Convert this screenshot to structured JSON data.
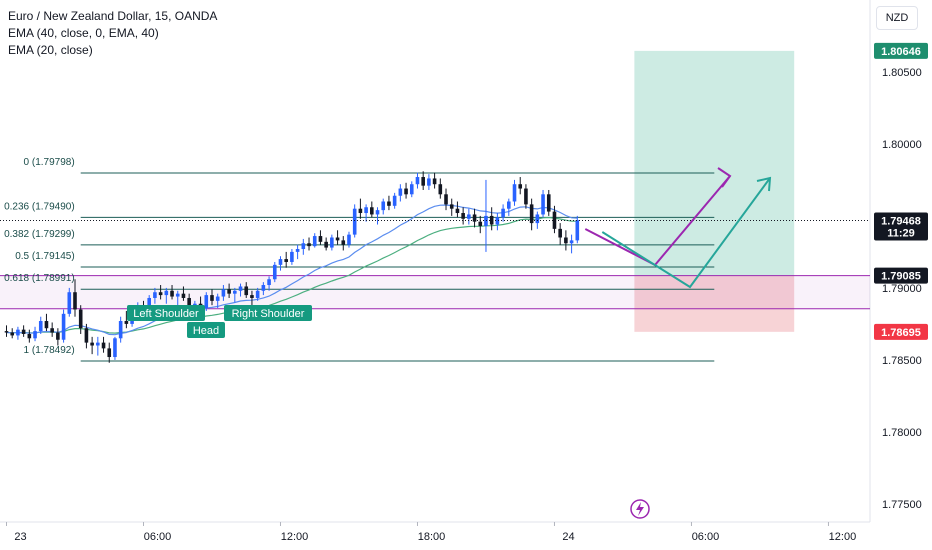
{
  "header": {
    "symbol_line": "Euro / New Zealand Dollar, 15, OANDA",
    "indicator_1": "EMA (40, close, 0, EMA, 40)",
    "indicator_2": "EMA (20, close)"
  },
  "currency_button": "NZD",
  "colors": {
    "up": "#2962ff",
    "down": "#131722",
    "ema40": "#5b8def",
    "ema20": "#4caf80",
    "fib": "#1b5e57",
    "purple": "#9c27b0",
    "teal": "#26a69a",
    "profit_zone": "#cdebe3",
    "loss_zone": "#f7d3d6",
    "target_label": "#1e8e6e",
    "stop_label": "#f23645",
    "price_label": "#131722"
  },
  "chart_data": {
    "type": "candlestick",
    "y_range": [
      1.772,
      1.809
    ],
    "y_ticks": [
      "1.80500",
      "1.80000",
      "1.79000",
      "1.78500",
      "1.78000",
      "1.77500"
    ],
    "y_tick_values": [
      1.805,
      1.8,
      1.79,
      1.785,
      1.78,
      1.775
    ],
    "x_ticks": [
      "23",
      "06:00",
      "12:00",
      "18:00",
      "24",
      "06:00",
      "12:00"
    ],
    "x_tick_bars": [
      0,
      24,
      48,
      72,
      96,
      120,
      144
    ],
    "price_labels": [
      {
        "text": "1.80646",
        "value": 1.80646,
        "kind": "target"
      },
      {
        "text": "1.79468",
        "value": 1.79468,
        "kind": "last"
      },
      {
        "text": "11:29",
        "value": 1.79385,
        "kind": "countdown"
      },
      {
        "text": "1.79085",
        "value": 1.79085,
        "kind": "level"
      },
      {
        "text": "1.78695",
        "value": 1.78695,
        "kind": "stop"
      }
    ],
    "fib_levels": [
      {
        "label": "0 (1.79798)",
        "value": 1.79798
      },
      {
        "label": "0.236 (1.79490)",
        "value": 1.7949
      },
      {
        "label": "0.382 (1.79299)",
        "value": 1.79299
      },
      {
        "label": "0.5 (1.79145)",
        "value": 1.79145
      },
      {
        "label": "0.618 (1.78991)",
        "value": 1.78991
      },
      {
        "label": "1 (1.78492)",
        "value": 1.78492
      }
    ],
    "fib_bar_range": [
      13,
      124
    ],
    "horizontal_levels": [
      1.79085,
      1.78855
    ],
    "position": {
      "bar_start": 110,
      "bar_end": 138,
      "target": 1.80646,
      "entry": 1.79085,
      "stop": 1.78695
    },
    "pattern_labels": [
      "Left Shoulder",
      "Head",
      "Right Shoulder"
    ],
    "candles": [
      [
        1.787,
        1.7874,
        1.7866,
        1.7869
      ],
      [
        1.7869,
        1.7872,
        1.7865,
        1.7867
      ],
      [
        1.7867,
        1.7873,
        1.7864,
        1.7871
      ],
      [
        1.7871,
        1.7874,
        1.7866,
        1.7868
      ],
      [
        1.7868,
        1.7871,
        1.7862,
        1.7865
      ],
      [
        1.7865,
        1.7873,
        1.7863,
        1.787
      ],
      [
        1.787,
        1.788,
        1.7868,
        1.7877
      ],
      [
        1.7877,
        1.7882,
        1.787,
        1.7872
      ],
      [
        1.7872,
        1.7876,
        1.7866,
        1.7869
      ],
      [
        1.7869,
        1.7872,
        1.786,
        1.7864
      ],
      [
        1.7864,
        1.7885,
        1.7862,
        1.7882
      ],
      [
        1.7882,
        1.79,
        1.788,
        1.7897
      ],
      [
        1.7897,
        1.7906,
        1.788,
        1.7885
      ],
      [
        1.7885,
        1.7888,
        1.7868,
        1.7872
      ],
      [
        1.7872,
        1.7875,
        1.7858,
        1.7862
      ],
      [
        1.7862,
        1.7866,
        1.7854,
        1.786
      ],
      [
        1.786,
        1.7866,
        1.7853,
        1.7862
      ],
      [
        1.7862,
        1.7866,
        1.7855,
        1.7858
      ],
      [
        1.7858,
        1.7862,
        1.7848,
        1.7852
      ],
      [
        1.7852,
        1.7866,
        1.785,
        1.7865
      ],
      [
        1.7865,
        1.788,
        1.7862,
        1.7877
      ],
      [
        1.7877,
        1.7884,
        1.7872,
        1.7875
      ],
      [
        1.7875,
        1.7886,
        1.7873,
        1.7884
      ],
      [
        1.7884,
        1.789,
        1.788,
        1.7887
      ],
      [
        1.7887,
        1.7891,
        1.7882,
        1.7884
      ],
      [
        1.7884,
        1.7895,
        1.7882,
        1.7893
      ],
      [
        1.7893,
        1.79,
        1.7889,
        1.7897
      ],
      [
        1.7897,
        1.7902,
        1.7892,
        1.7895
      ],
      [
        1.7895,
        1.79,
        1.7889,
        1.7898
      ],
      [
        1.7898,
        1.7902,
        1.7892,
        1.7894
      ],
      [
        1.7894,
        1.7898,
        1.7888,
        1.7896
      ],
      [
        1.7896,
        1.7901,
        1.7891,
        1.7893
      ],
      [
        1.7893,
        1.7896,
        1.7884,
        1.7887
      ],
      [
        1.7887,
        1.7891,
        1.7882,
        1.7889
      ],
      [
        1.7889,
        1.7894,
        1.7884,
        1.7886
      ],
      [
        1.7886,
        1.7897,
        1.7884,
        1.7895
      ],
      [
        1.7895,
        1.7899,
        1.7888,
        1.7891
      ],
      [
        1.7891,
        1.7896,
        1.7886,
        1.7894
      ],
      [
        1.7894,
        1.7902,
        1.7891,
        1.7899
      ],
      [
        1.7899,
        1.7903,
        1.7893,
        1.7896
      ],
      [
        1.7896,
        1.79,
        1.789,
        1.7898
      ],
      [
        1.7898,
        1.7903,
        1.7894,
        1.7901
      ],
      [
        1.7901,
        1.7904,
        1.7893,
        1.7895
      ],
      [
        1.7895,
        1.7898,
        1.7888,
        1.7893
      ],
      [
        1.7893,
        1.79,
        1.7891,
        1.7898
      ],
      [
        1.7898,
        1.7904,
        1.7895,
        1.7902
      ],
      [
        1.7902,
        1.7908,
        1.7898,
        1.7906
      ],
      [
        1.7906,
        1.7918,
        1.7904,
        1.7916
      ],
      [
        1.7916,
        1.7922,
        1.7912,
        1.792
      ],
      [
        1.792,
        1.7925,
        1.7914,
        1.7918
      ],
      [
        1.7918,
        1.7927,
        1.7916,
        1.7925
      ],
      [
        1.7925,
        1.793,
        1.792,
        1.7927
      ],
      [
        1.7927,
        1.7934,
        1.7923,
        1.7931
      ],
      [
        1.7931,
        1.7935,
        1.7926,
        1.7929
      ],
      [
        1.7929,
        1.7938,
        1.7928,
        1.7936
      ],
      [
        1.7936,
        1.794,
        1.793,
        1.7932
      ],
      [
        1.7932,
        1.7935,
        1.7926,
        1.7928
      ],
      [
        1.7928,
        1.7937,
        1.7926,
        1.7935
      ],
      [
        1.7935,
        1.794,
        1.793,
        1.7933
      ],
      [
        1.7933,
        1.7936,
        1.7926,
        1.793
      ],
      [
        1.793,
        1.7939,
        1.7928,
        1.7937
      ],
      [
        1.7937,
        1.7958,
        1.7935,
        1.7955
      ],
      [
        1.7955,
        1.7962,
        1.7948,
        1.7952
      ],
      [
        1.7952,
        1.7958,
        1.7946,
        1.7956
      ],
      [
        1.7956,
        1.796,
        1.7949,
        1.7951
      ],
      [
        1.7951,
        1.7956,
        1.7944,
        1.7954
      ],
      [
        1.7954,
        1.7962,
        1.7951,
        1.796
      ],
      [
        1.796,
        1.7964,
        1.7954,
        1.7957
      ],
      [
        1.7957,
        1.7966,
        1.7955,
        1.7964
      ],
      [
        1.7964,
        1.7972,
        1.796,
        1.7969
      ],
      [
        1.7969,
        1.7973,
        1.7962,
        1.7965
      ],
      [
        1.7965,
        1.7974,
        1.7963,
        1.7972
      ],
      [
        1.7972,
        1.798,
        1.7969,
        1.7977
      ],
      [
        1.7977,
        1.7981,
        1.7968,
        1.7971
      ],
      [
        1.7971,
        1.7979,
        1.7968,
        1.7976
      ],
      [
        1.7976,
        1.798,
        1.7969,
        1.7972
      ],
      [
        1.7972,
        1.7976,
        1.7962,
        1.7965
      ],
      [
        1.7965,
        1.7969,
        1.7954,
        1.7958
      ],
      [
        1.7958,
        1.7962,
        1.795,
        1.7955
      ],
      [
        1.7955,
        1.796,
        1.7949,
        1.7952
      ],
      [
        1.7952,
        1.7956,
        1.7944,
        1.7948
      ],
      [
        1.7948,
        1.7955,
        1.7944,
        1.7951
      ],
      [
        1.7951,
        1.7955,
        1.7942,
        1.7946
      ],
      [
        1.7946,
        1.795,
        1.7938,
        1.7943
      ],
      [
        1.7943,
        1.7975,
        1.7925,
        1.795
      ],
      [
        1.795,
        1.7956,
        1.794,
        1.7944
      ],
      [
        1.7944,
        1.7952,
        1.794,
        1.7949
      ],
      [
        1.7949,
        1.7958,
        1.7946,
        1.7955
      ],
      [
        1.7955,
        1.7962,
        1.795,
        1.796
      ],
      [
        1.796,
        1.7975,
        1.7957,
        1.7972
      ],
      [
        1.7972,
        1.7977,
        1.7965,
        1.7969
      ],
      [
        1.7969,
        1.7972,
        1.7955,
        1.7958
      ],
      [
        1.7958,
        1.7962,
        1.794,
        1.7945
      ],
      [
        1.7945,
        1.7953,
        1.7941,
        1.7951
      ],
      [
        1.7951,
        1.7968,
        1.7949,
        1.7965
      ],
      [
        1.7965,
        1.7968,
        1.795,
        1.7953
      ],
      [
        1.7953,
        1.7957,
        1.7938,
        1.7941
      ],
      [
        1.7941,
        1.7945,
        1.793,
        1.7935
      ],
      [
        1.7935,
        1.794,
        1.7926,
        1.7931
      ],
      [
        1.7931,
        1.7937,
        1.7924,
        1.7933
      ],
      [
        1.7933,
        1.795,
        1.7931,
        1.7947
      ]
    ]
  }
}
